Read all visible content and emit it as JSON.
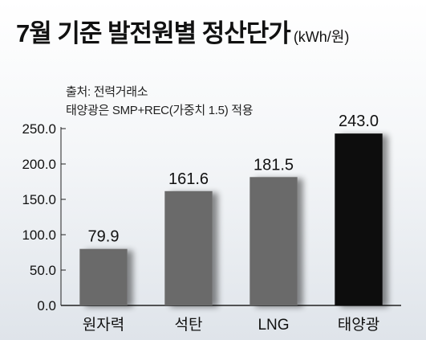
{
  "header": {
    "title": "7월 기준 발전원별 정산단가",
    "unit": "(kWh/원)"
  },
  "notes": {
    "source": "출처: 전력거래소",
    "footnote": "태양광은 SMP+REC(가중치 1.5) 적용"
  },
  "colors": {
    "bar": "#6b6b6b",
    "highlight_bar": "#0a0a0a",
    "axis": "#222222"
  },
  "chart_data": {
    "type": "bar",
    "categories": [
      "원자력",
      "석탄",
      "LNG",
      "태양광"
    ],
    "values": [
      79.9,
      161.6,
      181.5,
      243.0
    ],
    "value_labels": [
      "79.9",
      "161.6",
      "181.5",
      "243.0"
    ],
    "y_ticks": [
      0,
      50,
      100,
      150,
      200,
      250
    ],
    "y_tick_labels": [
      "0.0",
      "50.0",
      "100.0",
      "150.0",
      "200.0",
      "250.0"
    ],
    "ylim": [
      0,
      250
    ],
    "highlight_index": 3,
    "grid": false,
    "title": "7월 기준 발전원별 정산단가",
    "xlabel": "",
    "ylabel": ""
  }
}
